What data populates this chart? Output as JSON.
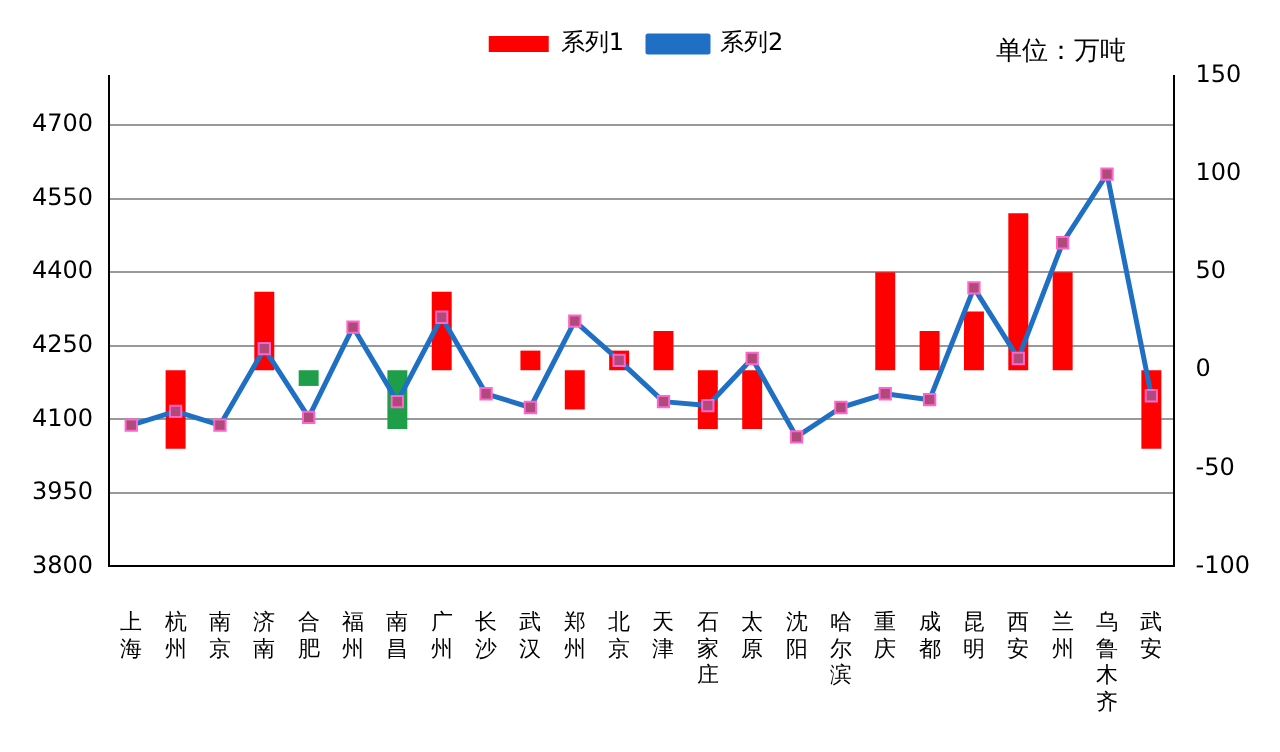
{
  "chart_data": {
    "type": "bar",
    "categories": [
      "上海",
      "杭州",
      "南京",
      "济南",
      "合肥",
      "福州",
      "南昌",
      "广州",
      "长沙",
      "武汉",
      "郑州",
      "北京",
      "天津",
      "石家庄",
      "太原",
      "沈阳",
      "哈尔滨",
      "重庆",
      "成都",
      "昆明",
      "西安",
      "兰州",
      "乌鲁木齐",
      "武安"
    ],
    "series": [
      {
        "name": "系列1",
        "axis": "y2",
        "color": "#ff0000",
        "colors": [
          null,
          null,
          null,
          null,
          "#1f9e4a",
          null,
          "#1f9e4a",
          null,
          null,
          null,
          null,
          null,
          null,
          null,
          null,
          null,
          null,
          null,
          null,
          null,
          null,
          null,
          null,
          null
        ],
        "values": [
          null,
          -40,
          null,
          40,
          -8,
          null,
          -30,
          40,
          null,
          10,
          -20,
          10,
          20,
          -30,
          -30,
          null,
          null,
          50,
          20,
          30,
          80,
          50,
          null,
          -40
        ]
      },
      {
        "name": "系列2",
        "type": "line",
        "axis": "y2",
        "color": "#1f6fc5",
        "values": [
          -28,
          -21,
          -28,
          11,
          -24,
          22,
          -16,
          27,
          -12,
          -19,
          25,
          5,
          -16,
          -18,
          6,
          -34,
          -19,
          -12,
          -15,
          42,
          6,
          65,
          100,
          -13
        ]
      }
    ],
    "ylim": [
      3800,
      4800
    ],
    "yticks": [
      3800,
      3950,
      4100,
      4250,
      4400,
      4550,
      4700
    ],
    "y2lim": [
      -100,
      150
    ],
    "y2ticks": [
      -100,
      -50,
      0,
      50,
      100,
      150
    ],
    "grid": "y",
    "legend": "top",
    "marker": "square",
    "line_style": "solid",
    "annotations": [
      "单位：万吨"
    ]
  }
}
